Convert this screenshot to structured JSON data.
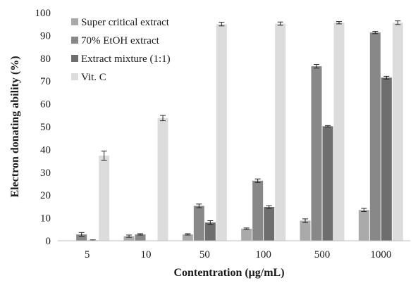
{
  "chart_data": {
    "type": "bar",
    "title": "",
    "xlabel": "Contentration (μg/mL)",
    "ylabel": "Electron donating ability (%)",
    "ylim": [
      0,
      100
    ],
    "yticks": [
      0,
      10,
      20,
      30,
      40,
      50,
      60,
      70,
      80,
      90,
      100
    ],
    "categories": [
      "5",
      "10",
      "50",
      "100",
      "500",
      "1000"
    ],
    "grid": false,
    "legend_position": "top-left",
    "series": [
      {
        "name": "Super critical extract",
        "color": "#aaaaaa",
        "values": [
          0,
          2.0,
          2.8,
          5.3,
          8.8,
          13.5
        ],
        "errors": [
          0,
          0.5,
          0.3,
          0.3,
          0.8,
          0.7
        ]
      },
      {
        "name": "70% EtOH extract",
        "color": "#888888",
        "values": [
          2.8,
          2.8,
          15.3,
          26.3,
          76.5,
          91.3
        ],
        "errors": [
          0.8,
          0.3,
          0.8,
          0.8,
          0.8,
          0.5
        ]
      },
      {
        "name": "Extract mixture (1:1)",
        "color": "#6e6e6e",
        "values": [
          0.2,
          0,
          8.0,
          14.8,
          50.2,
          71.5
        ],
        "errors": [
          0.2,
          0,
          0.8,
          0.6,
          0.3,
          0.6
        ]
      },
      {
        "name": "Vit. C",
        "color": "#dcdcdc",
        "values": [
          37.3,
          53.8,
          95.0,
          95.2,
          95.6,
          95.6
        ],
        "errors": [
          2.0,
          1.2,
          0.8,
          0.7,
          0.5,
          0.8
        ]
      }
    ]
  }
}
